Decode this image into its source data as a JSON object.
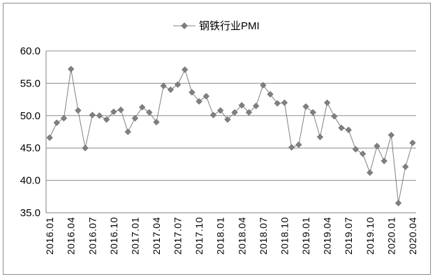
{
  "chart_data": {
    "type": "line",
    "title": "",
    "xlabel": "",
    "ylabel": "",
    "ylim": [
      35.0,
      60.0
    ],
    "yticks": [
      "35.0",
      "40.0",
      "45.0",
      "50.0",
      "55.0",
      "60.0"
    ],
    "grid": "horizontal",
    "legend": "top-center",
    "x_tick_labels": [
      "2016.01",
      "2016.04",
      "2016.07",
      "2016.10",
      "2017.01",
      "2017.04",
      "2017.07",
      "2017.10",
      "2018.01",
      "2018.04",
      "2018.07",
      "2018.10",
      "2019.01",
      "2019.04",
      "2019.07",
      "2019.10",
      "2020.01",
      "2020.04"
    ],
    "x": [
      "2016.01",
      "2016.02",
      "2016.03",
      "2016.04",
      "2016.05",
      "2016.06",
      "2016.07",
      "2016.08",
      "2016.09",
      "2016.10",
      "2016.11",
      "2016.12",
      "2017.01",
      "2017.02",
      "2017.03",
      "2017.04",
      "2017.05",
      "2017.06",
      "2017.07",
      "2017.08",
      "2017.09",
      "2017.10",
      "2017.11",
      "2017.12",
      "2018.01",
      "2018.02",
      "2018.03",
      "2018.04",
      "2018.05",
      "2018.06",
      "2018.07",
      "2018.08",
      "2018.09",
      "2018.10",
      "2018.11",
      "2018.12",
      "2019.01",
      "2019.02",
      "2019.03",
      "2019.04",
      "2019.05",
      "2019.06",
      "2019.07",
      "2019.08",
      "2019.09",
      "2019.10",
      "2019.11",
      "2019.12",
      "2020.01",
      "2020.02",
      "2020.03",
      "2020.04"
    ],
    "series": [
      {
        "name": "钢铁行业PMI",
        "color": "#808080",
        "marker": "diamond",
        "values": [
          46.6,
          48.9,
          49.6,
          57.2,
          50.8,
          45.0,
          50.1,
          50.0,
          49.4,
          50.6,
          50.9,
          47.5,
          49.6,
          51.3,
          50.5,
          49.0,
          54.6,
          54.0,
          54.8,
          57.1,
          53.6,
          52.2,
          53.0,
          50.1,
          50.8,
          49.4,
          50.5,
          51.6,
          50.5,
          51.5,
          54.7,
          53.3,
          51.9,
          52.0,
          45.1,
          45.5,
          51.4,
          50.5,
          46.7,
          52.0,
          49.9,
          48.1,
          47.8,
          44.8,
          44.1,
          41.2,
          45.3,
          43.0,
          47.0,
          36.5,
          42.1,
          45.8
        ]
      }
    ]
  }
}
